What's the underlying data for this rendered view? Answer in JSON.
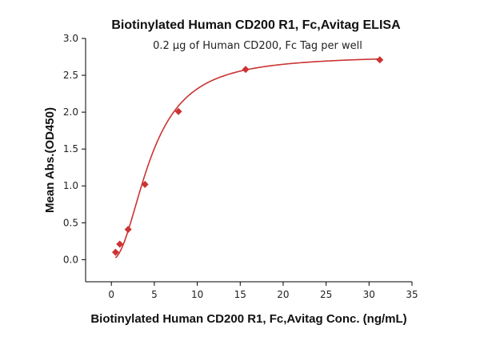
{
  "chart_data": {
    "type": "scatter",
    "title": "Biotinylated Human CD200 R1, Fc,Avitag ELISA",
    "subtitle": "0.2 µg of Human CD200, Fc Tag per well",
    "xlabel": "Biotinylated Human CD200 R1, Fc,Avitag Conc. (ng/mL)",
    "ylabel": "Mean Abs.(OD450)",
    "xlim": [
      -3,
      35
    ],
    "ylim": [
      -0.3,
      3.0
    ],
    "x_ticks": [
      "0",
      "5",
      "10",
      "15",
      "20",
      "25",
      "30",
      "35"
    ],
    "y_ticks": [
      "0.0",
      "0.5",
      "1.0",
      "1.5",
      "2.0",
      "2.5",
      "3.0"
    ],
    "grid": false,
    "series": [
      {
        "points": [
          {
            "x": 0.49,
            "y": 0.1
          },
          {
            "x": 0.98,
            "y": 0.21
          },
          {
            "x": 1.95,
            "y": 0.41
          },
          {
            "x": 3.91,
            "y": 1.02
          },
          {
            "x": 7.81,
            "y": 2.01
          },
          {
            "x": 15.63,
            "y": 2.58
          },
          {
            "x": 31.25,
            "y": 2.71
          }
        ],
        "marker": "diamond",
        "fit": "4-parameter logistic",
        "color": "#cc3333"
      }
    ]
  }
}
